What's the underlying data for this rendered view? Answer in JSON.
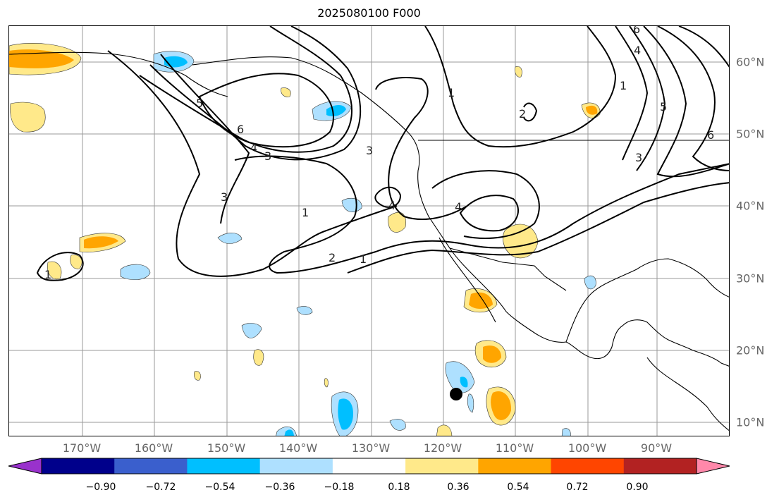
{
  "title": "2025080100 F000",
  "map": {
    "lon_labels": [
      "170°W",
      "160°W",
      "150°W",
      "140°W",
      "130°W",
      "120°W",
      "110°W",
      "100°W",
      "90°W"
    ],
    "lat_labels": [
      "60°N",
      "50°N",
      "40°N",
      "30°N",
      "20°N",
      "10°N"
    ],
    "contour_labels": [
      "1",
      "2",
      "3",
      "4",
      "5",
      "6"
    ],
    "shading_colors": {
      "pos_018_036": "#ffe98a",
      "pos_036_054": "#ffa500",
      "neg_018_036": "#aee0ff",
      "neg_036_054": "#00bfff"
    },
    "marker": "black-dot"
  },
  "colorbar": {
    "ticks": [
      "−0.90",
      "−0.72",
      "−0.54",
      "−0.36",
      "−0.18",
      "0.18",
      "0.36",
      "0.54",
      "0.72",
      "0.90"
    ],
    "colors": [
      "#9932cc",
      "#00008b",
      "#3a5fcd",
      "#00bfff",
      "#aee0ff",
      "#ffffff",
      "#ffe98a",
      "#ffa500",
      "#ff4500",
      "#b22222",
      "#ff88aa"
    ]
  }
}
